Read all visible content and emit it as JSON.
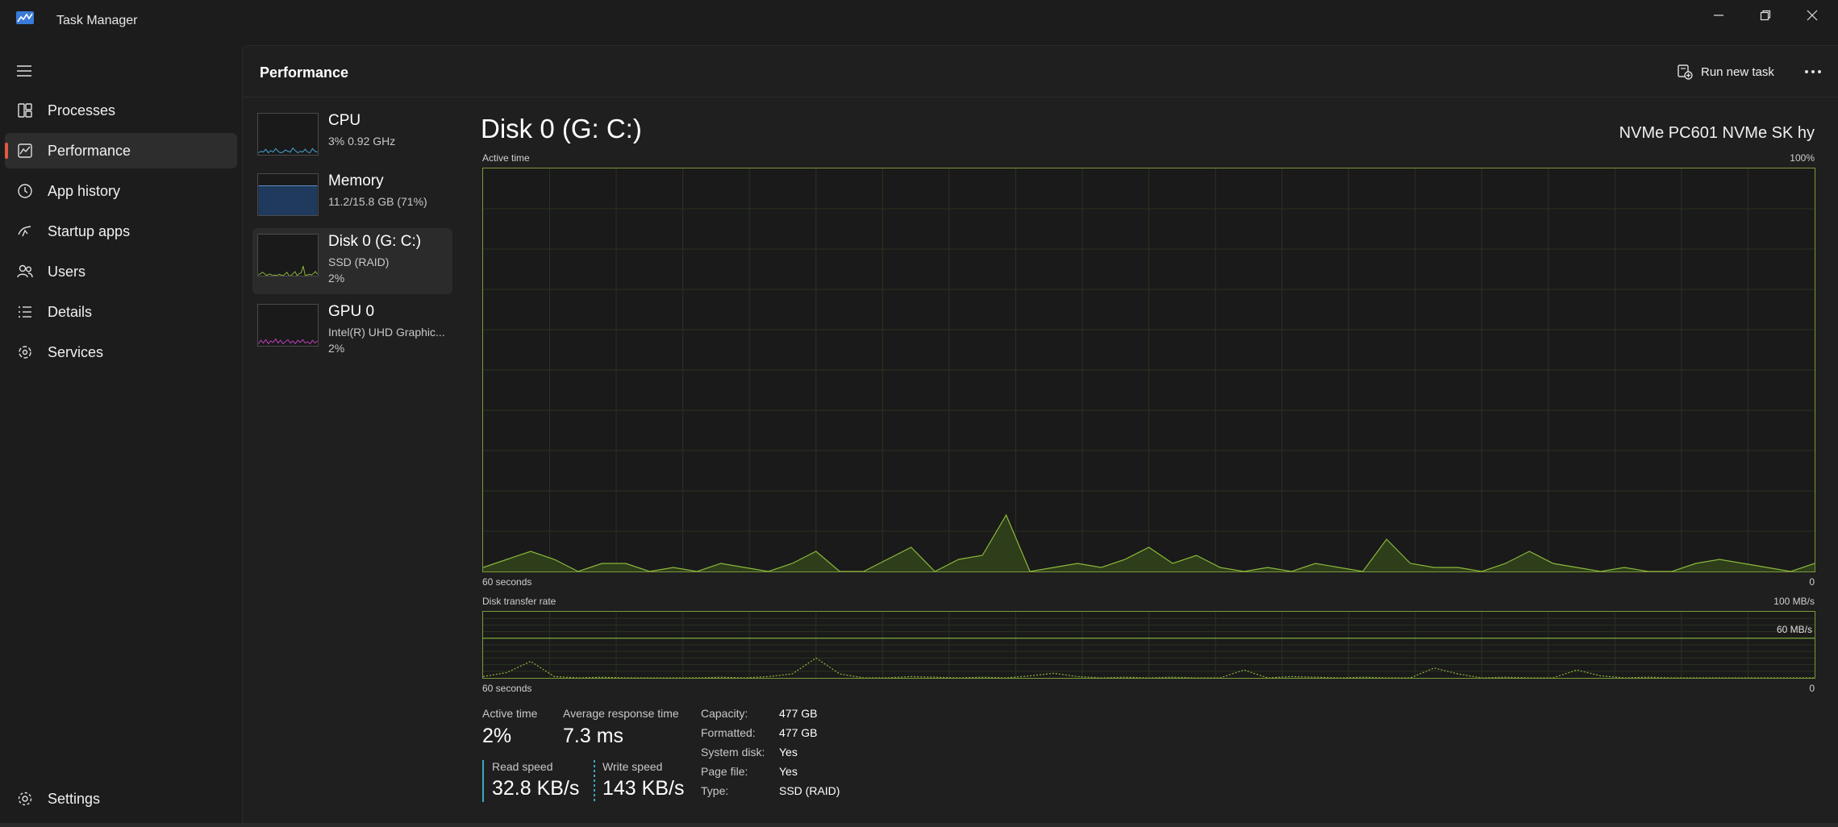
{
  "window": {
    "title": "Task Manager"
  },
  "nav": {
    "items": [
      {
        "label": "Processes",
        "icon": "processes-icon"
      },
      {
        "label": "Performance",
        "icon": "performance-icon",
        "active": true
      },
      {
        "label": "App history",
        "icon": "history-icon"
      },
      {
        "label": "Startup apps",
        "icon": "startup-icon"
      },
      {
        "label": "Users",
        "icon": "users-icon"
      },
      {
        "label": "Details",
        "icon": "details-icon"
      },
      {
        "label": "Services",
        "icon": "services-icon"
      }
    ],
    "settings_label": "Settings"
  },
  "header": {
    "title": "Performance",
    "run_new_task": "Run new task"
  },
  "devices": [
    {
      "name": "CPU",
      "line1": "3%  0.92 GHz",
      "line2": "",
      "color": "#4aa8d8"
    },
    {
      "name": "Memory",
      "line1": "11.2/15.8 GB (71%)",
      "line2": "",
      "color": "#5a8ac8"
    },
    {
      "name": "Disk 0 (G: C:)",
      "line1": "SSD (RAID)",
      "line2": "2%",
      "color": "#8ab83a",
      "active": true
    },
    {
      "name": "GPU 0",
      "line1": "Intel(R) UHD Graphic...",
      "line2": "2%",
      "color": "#c040c0"
    }
  ],
  "detail": {
    "title": "Disk 0 (G: C:)",
    "model": "NVMe PC601 NVMe SK hy",
    "active_time_chart": {
      "label": "Active time",
      "max_label": "100%",
      "x_left": "60 seconds",
      "x_right": "0",
      "values": [
        1,
        3,
        5,
        3,
        0,
        2,
        2,
        0,
        1,
        0,
        2,
        1,
        0,
        2,
        5,
        0,
        0,
        3,
        6,
        0,
        3,
        4,
        14,
        0,
        1,
        2,
        1,
        3,
        6,
        2,
        4,
        1,
        0,
        1,
        0,
        2,
        1,
        0,
        8,
        2,
        1,
        1,
        0,
        2,
        5,
        2,
        1,
        0,
        1,
        0,
        0,
        2,
        3,
        2,
        1,
        0,
        2
      ]
    },
    "transfer_chart": {
      "label": "Disk transfer rate",
      "max_label": "100 MB/s",
      "line_label": "60 MB/s",
      "line_value": 60,
      "max_value": 100,
      "x_left": "60 seconds",
      "x_right": "0",
      "values": [
        2,
        8,
        25,
        2,
        0,
        1,
        0,
        0,
        0,
        0,
        1,
        0,
        2,
        6,
        30,
        6,
        0,
        0,
        2,
        1,
        0,
        1,
        0,
        3,
        7,
        2,
        0,
        1,
        0,
        1,
        0,
        0,
        12,
        0,
        2,
        1,
        0,
        1,
        0,
        0,
        15,
        6,
        0,
        1,
        0,
        0,
        12,
        3,
        0,
        1,
        0,
        0,
        0,
        0,
        0,
        0,
        0
      ]
    },
    "stats": {
      "active_time_label": "Active time",
      "active_time_value": "2%",
      "avg_response_label": "Average response time",
      "avg_response_value": "7.3 ms",
      "read_speed_label": "Read speed",
      "read_speed_value": "32.8 KB/s",
      "write_speed_label": "Write speed",
      "write_speed_value": "143 KB/s"
    },
    "properties": [
      {
        "label": "Capacity:",
        "value": "477 GB"
      },
      {
        "label": "Formatted:",
        "value": "477 GB"
      },
      {
        "label": "System disk:",
        "value": "Yes"
      },
      {
        "label": "Page file:",
        "value": "Yes"
      },
      {
        "label": "Type:",
        "value": "SSD (RAID)"
      }
    ]
  },
  "colors": {
    "accent": "#e05a40",
    "disk_green": "#8ab83a",
    "disk_fill": "#2e3d1a",
    "read_bar": "#3aa8c0",
    "write_bar": "#3aa8c0"
  }
}
